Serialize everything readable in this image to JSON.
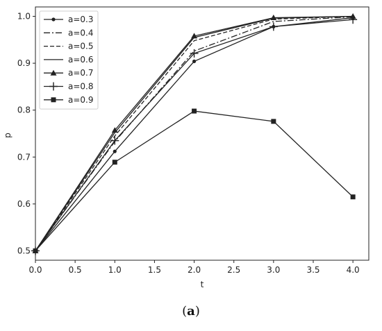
{
  "caption": {
    "open": "(",
    "letter": "a",
    "close": ")"
  },
  "chart_data": {
    "type": "line",
    "xlabel": "t",
    "ylabel": "p",
    "xlim": [
      0.0,
      4.2
    ],
    "ylim": [
      0.48,
      1.02
    ],
    "xticks": [
      "0.0",
      "0.5",
      "1.0",
      "1.5",
      "2.0",
      "2.5",
      "3.0",
      "3.5",
      "4.0"
    ],
    "yticks": [
      "0.5",
      "0.6",
      "0.7",
      "0.8",
      "0.9",
      "1.0"
    ],
    "grid": false,
    "legend_position": "top-left",
    "x": [
      0,
      1,
      2,
      3,
      4
    ],
    "series": [
      {
        "name": "a=0.3",
        "style": "solid",
        "marker": "dot",
        "values": [
          0.5,
          0.712,
          0.904,
          0.978,
          0.997
        ]
      },
      {
        "name": "a=0.4",
        "style": "dashdot",
        "marker": "none",
        "values": [
          0.5,
          0.733,
          0.926,
          0.989,
          0.999
        ]
      },
      {
        "name": "a=0.5",
        "style": "dashed",
        "marker": "none",
        "values": [
          0.5,
          0.745,
          0.948,
          0.994,
          1.0
        ]
      },
      {
        "name": "a=0.6",
        "style": "solid",
        "marker": "none",
        "values": [
          0.5,
          0.752,
          0.955,
          0.996,
          1.0
        ]
      },
      {
        "name": "a=0.7",
        "style": "solid",
        "marker": "triangle",
        "values": [
          0.5,
          0.757,
          0.958,
          0.997,
          1.0
        ]
      },
      {
        "name": "a=0.8",
        "style": "solid",
        "marker": "plus",
        "values": [
          0.5,
          0.735,
          0.921,
          0.978,
          0.993
        ]
      },
      {
        "name": "a=0.9",
        "style": "solid",
        "marker": "square",
        "values": [
          0.5,
          0.689,
          0.798,
          0.776,
          0.615
        ]
      }
    ]
  }
}
